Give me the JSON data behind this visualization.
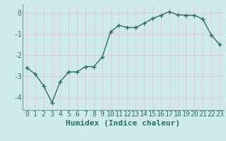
{
  "x": [
    0,
    1,
    2,
    3,
    4,
    5,
    6,
    7,
    8,
    9,
    10,
    11,
    12,
    13,
    14,
    15,
    16,
    17,
    18,
    19,
    20,
    21,
    22,
    23
  ],
  "y": [
    -2.6,
    -2.9,
    -3.45,
    -4.25,
    -3.25,
    -2.8,
    -2.8,
    -2.55,
    -2.55,
    -2.1,
    -0.9,
    -0.6,
    -0.7,
    -0.7,
    -0.5,
    -0.28,
    -0.12,
    0.05,
    -0.1,
    -0.12,
    -0.12,
    -0.3,
    -1.05,
    -1.5
  ],
  "line_color": "#2d6e63",
  "marker": "+",
  "marker_size": 4,
  "marker_linewidth": 1.0,
  "xlabel": "Humidex (Indice chaleur)",
  "xlim": [
    -0.5,
    23.5
  ],
  "ylim": [
    -4.6,
    0.4
  ],
  "yticks": [
    0,
    -1,
    -2,
    -3,
    -4
  ],
  "xticks": [
    0,
    1,
    2,
    3,
    4,
    5,
    6,
    7,
    8,
    9,
    10,
    11,
    12,
    13,
    14,
    15,
    16,
    17,
    18,
    19,
    20,
    21,
    22,
    23
  ],
  "xtick_labels": [
    "0",
    "1",
    "2",
    "3",
    "4",
    "5",
    "6",
    "7",
    "8",
    "9",
    "10",
    "11",
    "12",
    "13",
    "14",
    "15",
    "16",
    "17",
    "18",
    "19",
    "20",
    "21",
    "22",
    "23"
  ],
  "background_color": "#ceeaea",
  "grid_color": "#e8c8c8",
  "line_width": 1.0,
  "xlabel_fontsize": 8,
  "tick_fontsize": 7,
  "tick_color": "#2d6e63",
  "spine_color": "#7a9a9a"
}
